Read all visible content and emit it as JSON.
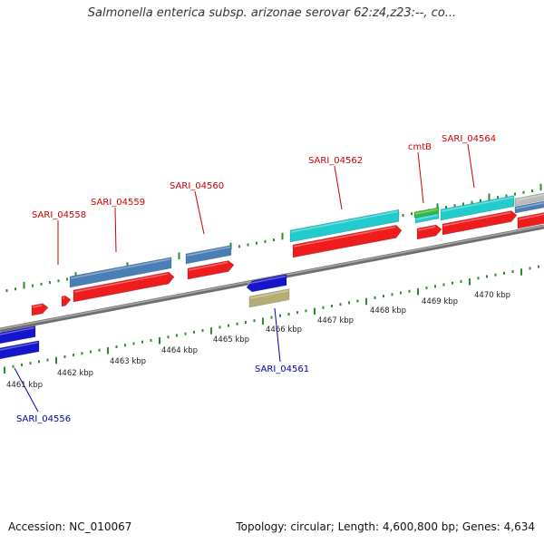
{
  "header": {
    "title": "Salmonella enterica subsp. arizonae serovar 62:z4,z23:--, co..."
  },
  "footer": {
    "accession": "Accession: NC_010067",
    "summary": "Topology: circular; Length: 4,600,800 bp; Genes: 4,634"
  },
  "colors": {
    "backbone": "#8a8a8a",
    "tick": "#2e8b2e",
    "forward_label": "#cc0000",
    "reverse_label": "#0000aa",
    "cds_red": "#ee1c1c",
    "cds_steelblue": "#4a7fb5",
    "cds_cyan": "#22cccc",
    "cds_blue": "#1515cc",
    "cds_olive": "#b5ae74",
    "cds_green": "#33bb33",
    "cds_gray": "#bbbbbb"
  },
  "scale": {
    "unit": "kbp",
    "ticks": [
      {
        "label": "4461 kbp"
      },
      {
        "label": "4462 kbp"
      },
      {
        "label": "4463 kbp"
      },
      {
        "label": "4464 kbp"
      },
      {
        "label": "4465 kbp"
      },
      {
        "label": "4466 kbp"
      },
      {
        "label": "4467 kbp"
      },
      {
        "label": "4468 kbp"
      },
      {
        "label": "4469 kbp"
      },
      {
        "label": "4470 kbp"
      }
    ]
  },
  "gene_labels": [
    {
      "name": "SARI_04556",
      "strand": "reverse"
    },
    {
      "name": "SARI_04558",
      "strand": "forward"
    },
    {
      "name": "SARI_04559",
      "strand": "forward"
    },
    {
      "name": "SARI_04560",
      "strand": "forward"
    },
    {
      "name": "SARI_04561",
      "strand": "reverse"
    },
    {
      "name": "SARI_04562",
      "strand": "forward"
    },
    {
      "name": "cmtB",
      "strand": "forward"
    },
    {
      "name": "SARI_04564",
      "strand": "forward"
    }
  ]
}
